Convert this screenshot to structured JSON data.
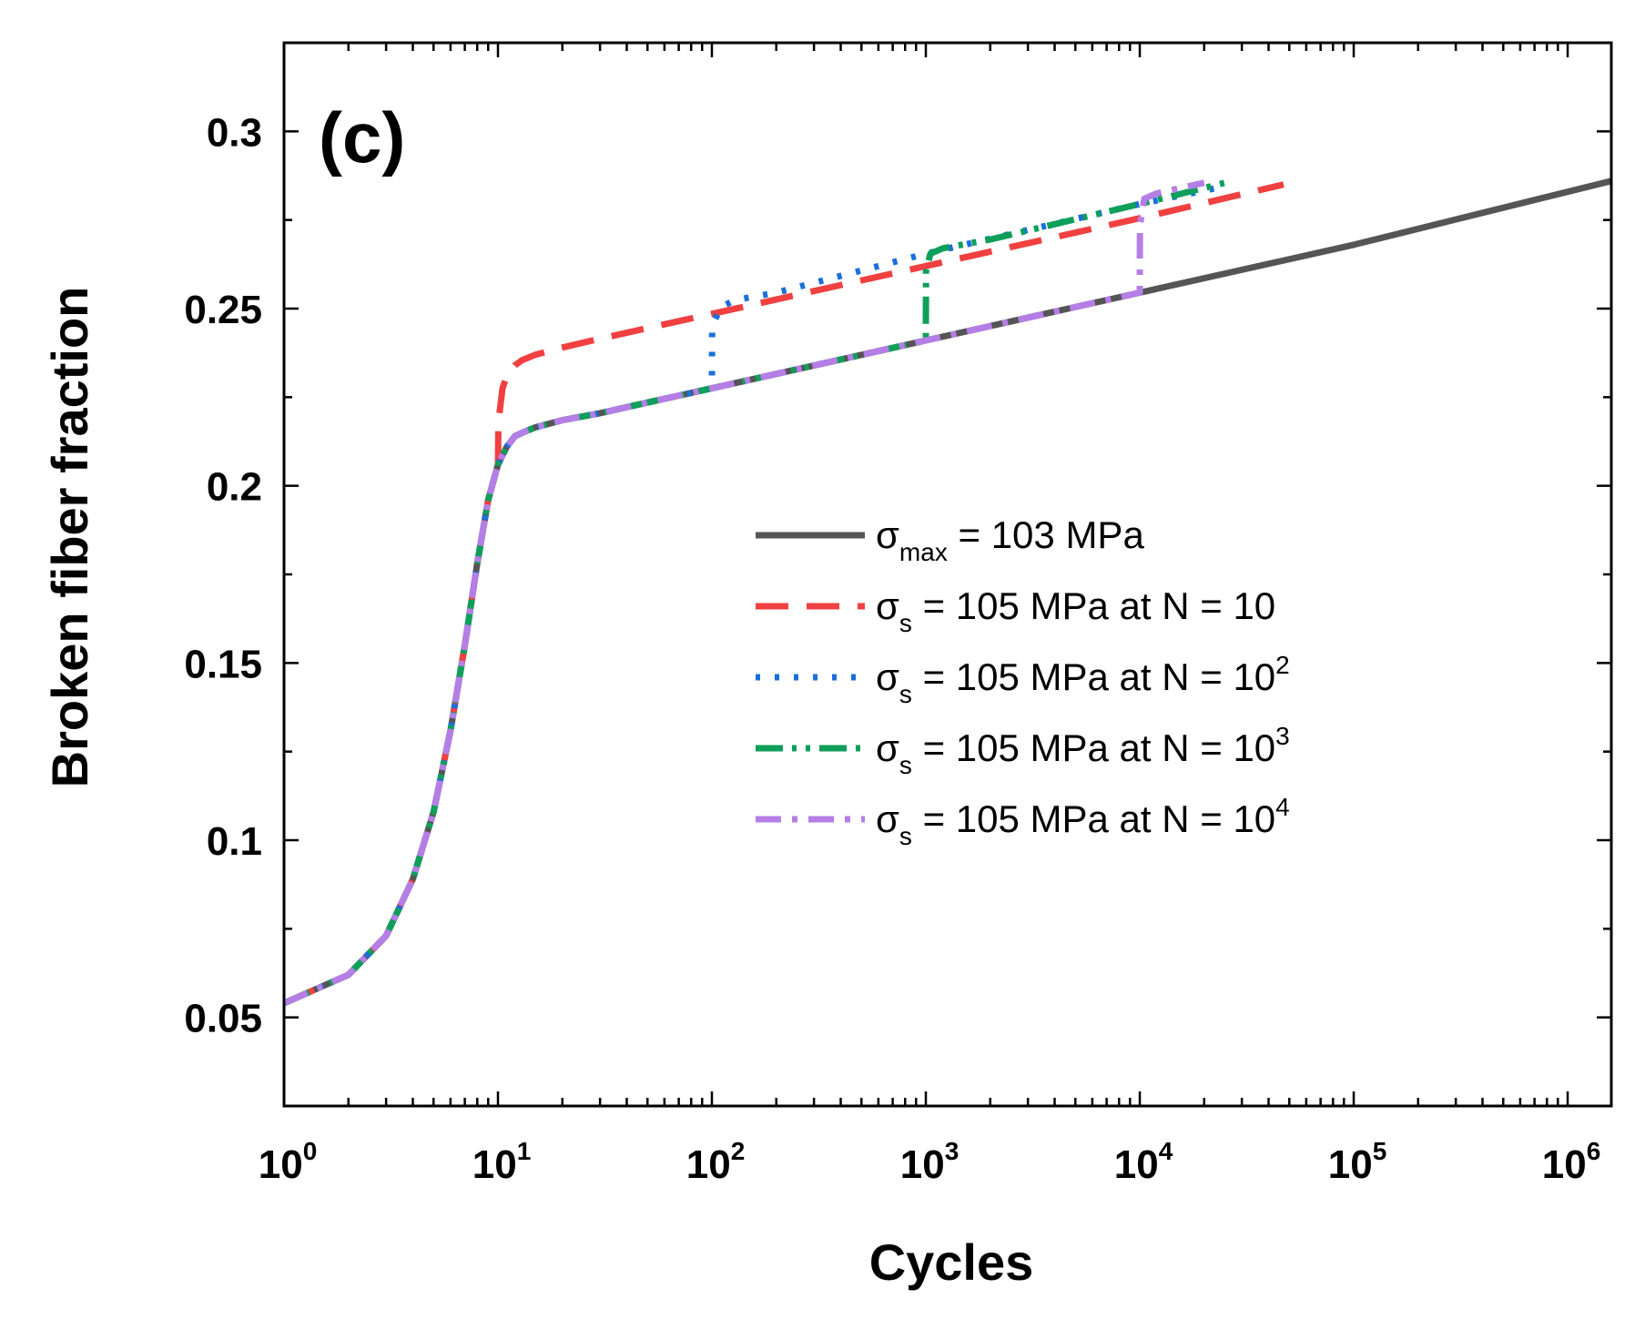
{
  "chart_data": {
    "type": "line",
    "panel_label": "(c)",
    "xlabel": "Cycles",
    "ylabel": "Broken fiber fraction",
    "xscale": "log",
    "xlim": [
      1,
      1600000
    ],
    "ylim": [
      0.025,
      0.325
    ],
    "x_ticks": [
      {
        "value": 1,
        "base": "10",
        "exp": "0"
      },
      {
        "value": 10,
        "base": "10",
        "exp": "1"
      },
      {
        "value": 100,
        "base": "10",
        "exp": "2"
      },
      {
        "value": 1000,
        "base": "10",
        "exp": "3"
      },
      {
        "value": 10000,
        "base": "10",
        "exp": "4"
      },
      {
        "value": 100000,
        "base": "10",
        "exp": "5"
      },
      {
        "value": 1000000,
        "base": "10",
        "exp": "6"
      }
    ],
    "y_ticks": [
      {
        "value": 0.05,
        "label": "0.05"
      },
      {
        "value": 0.1,
        "label": "0.1"
      },
      {
        "value": 0.15,
        "label": "0.15"
      },
      {
        "value": 0.2,
        "label": "0.2"
      },
      {
        "value": 0.25,
        "label": "0.25"
      },
      {
        "value": 0.3,
        "label": "0.3"
      }
    ],
    "legend_position": "center-right",
    "series": [
      {
        "name": "σmax = 103 MPa",
        "legend": {
          "symbol": "σ",
          "sub": "max",
          "rest": " = 103 MPa",
          "sup": ""
        },
        "color": "#555555",
        "dash": "none",
        "x": [
          1,
          2,
          3,
          4,
          5,
          6,
          7,
          8,
          9,
          10,
          11,
          12,
          13,
          15,
          20,
          30,
          50,
          100,
          1000,
          10000,
          100000,
          1600000
        ],
        "y": [
          0.054,
          0.062,
          0.073,
          0.089,
          0.108,
          0.131,
          0.155,
          0.178,
          0.196,
          0.206,
          0.211,
          0.214,
          0.215,
          0.2165,
          0.2185,
          0.2205,
          0.2235,
          0.2275,
          0.241,
          0.2545,
          0.268,
          0.286
        ]
      },
      {
        "name": "σs = 105 MPa at N = 10",
        "legend": {
          "symbol": "σ",
          "sub": "s",
          "rest": " = 105 MPa at N = 10",
          "sup": ""
        },
        "color": "#f04040",
        "dash": "36,20",
        "x": [
          1,
          2,
          3,
          4,
          5,
          6,
          7,
          8,
          9,
          10,
          10.05,
          10.5,
          11,
          12,
          13,
          15,
          20,
          30,
          50,
          100,
          1000,
          10000,
          47000
        ],
        "y": [
          0.054,
          0.062,
          0.073,
          0.089,
          0.108,
          0.131,
          0.155,
          0.178,
          0.196,
          0.206,
          0.218,
          0.2275,
          0.231,
          0.234,
          0.2355,
          0.237,
          0.239,
          0.2415,
          0.2445,
          0.2485,
          0.262,
          0.2755,
          0.285
        ]
      },
      {
        "name": "σs = 105 MPa at N = 10^2",
        "legend": {
          "symbol": "σ",
          "sub": "s",
          "rest": " = 105 MPa at N = 10",
          "sup": "2"
        },
        "color": "#1a6fdc",
        "dash": "5,16",
        "x": [
          1,
          2,
          3,
          4,
          5,
          6,
          7,
          8,
          9,
          10,
          11,
          12,
          13,
          15,
          20,
          30,
          50,
          100,
          100.3,
          110,
          130,
          200,
          1000,
          10000,
          25000
        ],
        "y": [
          0.054,
          0.062,
          0.073,
          0.089,
          0.108,
          0.131,
          0.155,
          0.178,
          0.196,
          0.206,
          0.211,
          0.214,
          0.215,
          0.2165,
          0.2185,
          0.2205,
          0.2235,
          0.2275,
          0.245,
          0.2505,
          0.2525,
          0.2545,
          0.2655,
          0.2795,
          0.2845
        ]
      },
      {
        "name": "σs = 105 MPa at N = 10^3",
        "legend": {
          "symbol": "σ",
          "sub": "s",
          "rest": " = 105 MPa at N = 10",
          "sup": "3"
        },
        "color": "#0e9f5a",
        "dash": "30,10,5,10,5,10",
        "x": [
          1,
          2,
          3,
          4,
          5,
          6,
          7,
          8,
          9,
          10,
          11,
          12,
          13,
          15,
          20,
          30,
          50,
          100,
          1000,
          1002,
          1050,
          1200,
          2000,
          10000,
          25000
        ],
        "y": [
          0.054,
          0.062,
          0.073,
          0.089,
          0.108,
          0.131,
          0.155,
          0.178,
          0.196,
          0.206,
          0.211,
          0.214,
          0.215,
          0.2165,
          0.2185,
          0.2205,
          0.2235,
          0.2275,
          0.241,
          0.2605,
          0.2655,
          0.267,
          0.2695,
          0.2795,
          0.2855
        ]
      },
      {
        "name": "σs = 105 MPa at N = 10^4",
        "legend": {
          "symbol": "σ",
          "sub": "s",
          "rest": " = 105 MPa at N = 10",
          "sup": "4"
        },
        "color": "#b57ee6",
        "dash": "28,12,6,12",
        "x": [
          1,
          2,
          3,
          4,
          5,
          6,
          7,
          8,
          9,
          10,
          11,
          12,
          13,
          15,
          20,
          30,
          50,
          100,
          1000,
          10000,
          10020,
          10500,
          12000,
          20000
        ],
        "y": [
          0.054,
          0.062,
          0.073,
          0.089,
          0.108,
          0.131,
          0.155,
          0.178,
          0.196,
          0.206,
          0.211,
          0.214,
          0.215,
          0.2165,
          0.2185,
          0.2205,
          0.2235,
          0.2275,
          0.241,
          0.2545,
          0.2735,
          0.281,
          0.2825,
          0.2855
        ]
      }
    ]
  }
}
